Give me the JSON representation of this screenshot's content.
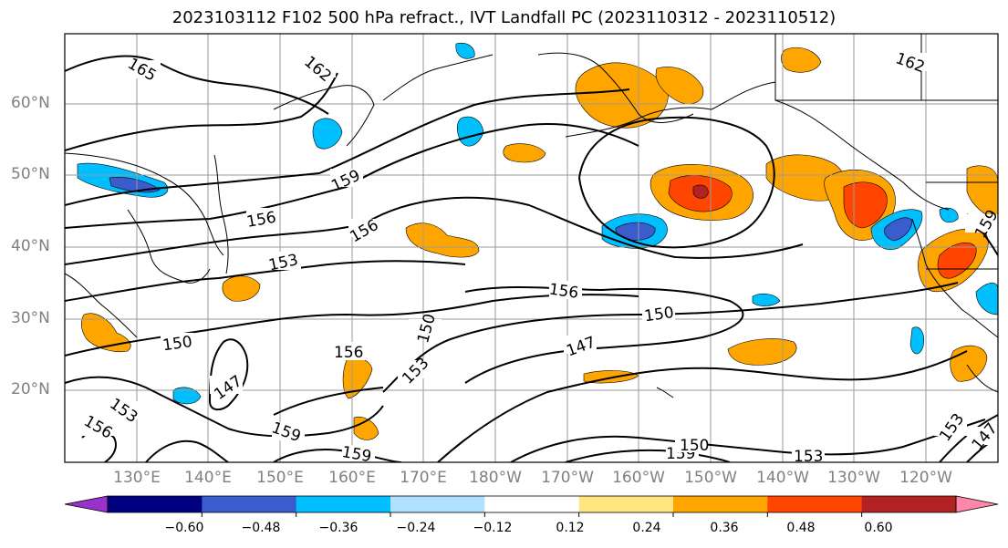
{
  "title": "2023103112 F102 500 hPa refract., IVT Landfall PC (2023110312 - 2023110512)",
  "lat_labels": [
    "60°N",
    "50°N",
    "40°N",
    "30°N",
    "20°N"
  ],
  "lon_labels": [
    "130°E",
    "140°E",
    "150°E",
    "160°E",
    "170°E",
    "180°W",
    "170°W",
    "160°W",
    "150°W",
    "140°W",
    "130°W",
    "120°W"
  ],
  "colorbar": {
    "tick_labels": [
      "−0.60",
      "−0.48",
      "−0.36",
      "−0.24",
      "−0.12",
      "0.12",
      "0.24",
      "0.36",
      "0.48",
      "0.60"
    ],
    "colors": [
      "#9932cc",
      "#000080",
      "#3a5ccc",
      "#00bfff",
      "#b0e2ff",
      "#ffffff",
      "#ffe680",
      "#ffa500",
      "#ff4500",
      "#b22222",
      "#ff88aa"
    ]
  },
  "contour_labels": [
    "165",
    "162",
    "162",
    "159",
    "159",
    "159",
    "159",
    "159",
    "156",
    "156",
    "156",
    "156",
    "156",
    "153",
    "153",
    "153",
    "153",
    "153",
    "150",
    "150",
    "150",
    "150",
    "147",
    "147",
    "147"
  ]
}
